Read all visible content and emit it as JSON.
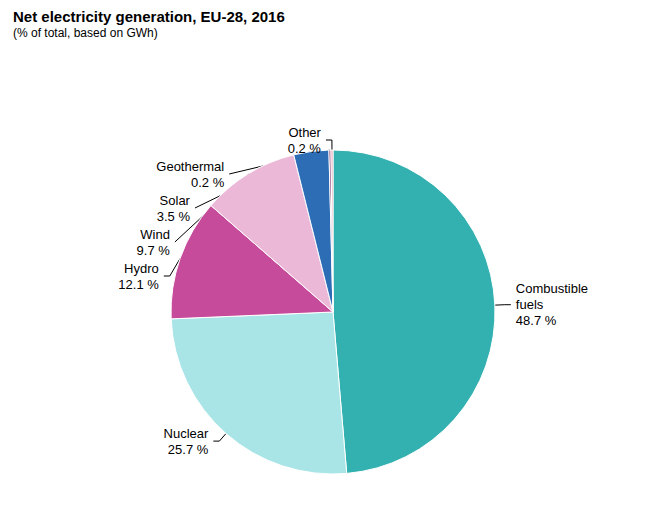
{
  "chart_data": {
    "type": "pie",
    "title": "Net electricity generation, EU-28, 2016",
    "subtitle": "(% of total, based on GWh)",
    "categories": [
      "Combustible fuels",
      "Nuclear",
      "Hydro",
      "Wind",
      "Solar",
      "Geothermal",
      "Other"
    ],
    "values": [
      48.7,
      25.7,
      12.1,
      9.7,
      3.5,
      0.2,
      0.2
    ],
    "value_labels": [
      "48.7 %",
      "25.7 %",
      "12.1 %",
      "9.7 %",
      "3.5 %",
      "0.2 %",
      "0.2 %"
    ],
    "colors": [
      "#33b1b1",
      "#a9e5e6",
      "#c74b9b",
      "#ebb8d8",
      "#2c6db5",
      "#7b2f6e",
      "#e9a3b5"
    ],
    "data_labels": true
  }
}
